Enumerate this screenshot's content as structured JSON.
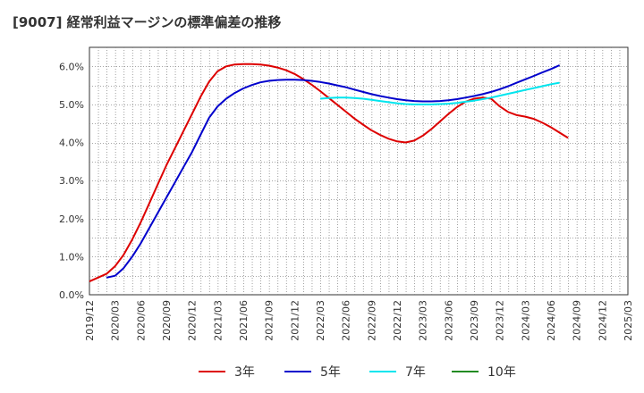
{
  "title": "[9007]  経常利益マージンの標準偏差の推移",
  "chart_data": {
    "type": "line",
    "title": "[9007]  経常利益マージンの標準偏差の推移",
    "xlabel": "",
    "ylabel": "",
    "x_ticks": [
      "2019/12",
      "2020/03",
      "2020/06",
      "2020/09",
      "2020/12",
      "2021/03",
      "2021/06",
      "2021/09",
      "2021/12",
      "2022/03",
      "2022/06",
      "2022/09",
      "2022/12",
      "2023/03",
      "2023/06",
      "2023/09",
      "2023/12",
      "2024/03",
      "2024/06",
      "2024/09",
      "2024/12",
      "2025/03"
    ],
    "y_ticks": [
      "0.0%",
      "1.0%",
      "2.0%",
      "3.0%",
      "4.0%",
      "5.0%",
      "6.0%"
    ],
    "ylim": [
      0,
      6.5
    ],
    "y_unit": "%",
    "grid": true,
    "legend_position": "bottom",
    "series": [
      {
        "name": "3年",
        "color": "#dd0000",
        "points": [
          [
            0,
            0.35
          ],
          [
            2,
            0.55
          ],
          [
            3,
            0.75
          ],
          [
            4,
            1.05
          ],
          [
            5,
            1.45
          ],
          [
            6,
            1.9
          ],
          [
            7,
            2.4
          ],
          [
            8,
            2.9
          ],
          [
            9,
            3.4
          ],
          [
            10,
            3.85
          ],
          [
            11,
            4.3
          ],
          [
            12,
            4.75
          ],
          [
            13,
            5.2
          ],
          [
            14,
            5.6
          ],
          [
            15,
            5.87
          ],
          [
            16,
            6.0
          ],
          [
            17,
            6.05
          ],
          [
            18,
            6.06
          ],
          [
            19,
            6.06
          ],
          [
            20,
            6.05
          ],
          [
            21,
            6.02
          ],
          [
            22,
            5.97
          ],
          [
            23,
            5.9
          ],
          [
            24,
            5.8
          ],
          [
            25,
            5.67
          ],
          [
            26,
            5.52
          ],
          [
            27,
            5.35
          ],
          [
            28,
            5.17
          ],
          [
            29,
            4.99
          ],
          [
            30,
            4.81
          ],
          [
            31,
            4.63
          ],
          [
            32,
            4.47
          ],
          [
            33,
            4.32
          ],
          [
            34,
            4.2
          ],
          [
            35,
            4.1
          ],
          [
            36,
            4.03
          ],
          [
            37,
            4.0
          ],
          [
            38,
            4.05
          ],
          [
            39,
            4.18
          ],
          [
            40,
            4.35
          ],
          [
            41,
            4.55
          ],
          [
            42,
            4.75
          ],
          [
            43,
            4.93
          ],
          [
            44,
            5.07
          ],
          [
            45,
            5.15
          ],
          [
            46,
            5.18
          ],
          [
            47,
            5.15
          ],
          [
            48,
            4.95
          ],
          [
            49,
            4.8
          ],
          [
            50,
            4.72
          ],
          [
            51,
            4.68
          ],
          [
            52,
            4.62
          ],
          [
            53,
            4.52
          ],
          [
            54,
            4.4
          ],
          [
            55,
            4.26
          ],
          [
            56,
            4.12
          ]
        ]
      },
      {
        "name": "5年",
        "color": "#0000cc",
        "points": [
          [
            2,
            0.45
          ],
          [
            3,
            0.5
          ],
          [
            4,
            0.7
          ],
          [
            5,
            1.0
          ],
          [
            6,
            1.35
          ],
          [
            7,
            1.75
          ],
          [
            8,
            2.15
          ],
          [
            9,
            2.55
          ],
          [
            10,
            2.95
          ],
          [
            11,
            3.35
          ],
          [
            12,
            3.75
          ],
          [
            13,
            4.2
          ],
          [
            14,
            4.65
          ],
          [
            15,
            4.95
          ],
          [
            16,
            5.15
          ],
          [
            17,
            5.3
          ],
          [
            18,
            5.42
          ],
          [
            19,
            5.51
          ],
          [
            20,
            5.58
          ],
          [
            21,
            5.62
          ],
          [
            22,
            5.64
          ],
          [
            23,
            5.65
          ],
          [
            24,
            5.65
          ],
          [
            25,
            5.64
          ],
          [
            26,
            5.62
          ],
          [
            27,
            5.59
          ],
          [
            28,
            5.55
          ],
          [
            29,
            5.5
          ],
          [
            30,
            5.45
          ],
          [
            31,
            5.39
          ],
          [
            32,
            5.33
          ],
          [
            33,
            5.27
          ],
          [
            34,
            5.22
          ],
          [
            35,
            5.18
          ],
          [
            36,
            5.14
          ],
          [
            37,
            5.11
          ],
          [
            38,
            5.09
          ],
          [
            39,
            5.08
          ],
          [
            40,
            5.08
          ],
          [
            41,
            5.09
          ],
          [
            42,
            5.11
          ],
          [
            43,
            5.14
          ],
          [
            44,
            5.18
          ],
          [
            45,
            5.22
          ],
          [
            46,
            5.27
          ],
          [
            47,
            5.33
          ],
          [
            48,
            5.4
          ],
          [
            49,
            5.48
          ],
          [
            50,
            5.57
          ],
          [
            51,
            5.66
          ],
          [
            52,
            5.75
          ],
          [
            53,
            5.84
          ],
          [
            54,
            5.93
          ],
          [
            55,
            6.03
          ]
        ]
      },
      {
        "name": "7年",
        "color": "#00e5ee",
        "points": [
          [
            27,
            5.15
          ],
          [
            28,
            5.17
          ],
          [
            29,
            5.18
          ],
          [
            30,
            5.18
          ],
          [
            31,
            5.17
          ],
          [
            32,
            5.15
          ],
          [
            33,
            5.12
          ],
          [
            34,
            5.09
          ],
          [
            35,
            5.06
          ],
          [
            36,
            5.03
          ],
          [
            37,
            5.01
          ],
          [
            38,
            5.0
          ],
          [
            39,
            5.0
          ],
          [
            40,
            5.0
          ],
          [
            41,
            5.01
          ],
          [
            42,
            5.02
          ],
          [
            43,
            5.04
          ],
          [
            44,
            5.07
          ],
          [
            45,
            5.1
          ],
          [
            46,
            5.14
          ],
          [
            47,
            5.18
          ],
          [
            48,
            5.23
          ],
          [
            49,
            5.28
          ],
          [
            50,
            5.33
          ],
          [
            51,
            5.38
          ],
          [
            52,
            5.43
          ],
          [
            53,
            5.48
          ],
          [
            54,
            5.53
          ],
          [
            55,
            5.57
          ]
        ]
      },
      {
        "name": "10年",
        "color": "#228b22",
        "points": []
      }
    ]
  },
  "legend": [
    "3年",
    "5年",
    "7年",
    "10年"
  ]
}
